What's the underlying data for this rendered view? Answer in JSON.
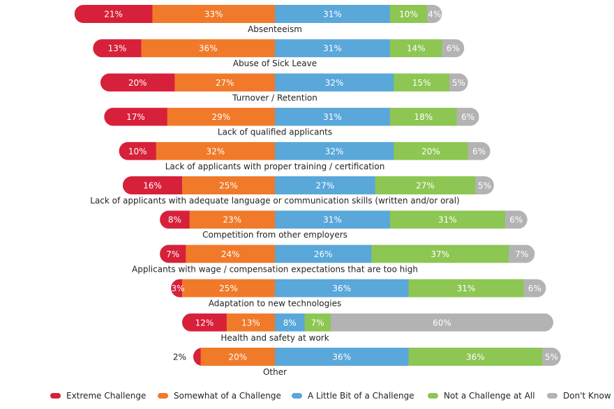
{
  "chart_data": {
    "type": "bar",
    "orientation": "horizontal",
    "stacked": true,
    "diverging": true,
    "title": "",
    "xlabel": "",
    "ylabel": "",
    "xlim": [
      0,
      100
    ],
    "grid": false,
    "legend_position": "bottom",
    "categories": [
      "Absenteeism",
      "Abuse of Sick Leave",
      "Turnover / Retention",
      "Lack of qualified applicants",
      "Lack of applicants with proper training / certification",
      "Lack of applicants with adequate language or communication skills (written and/or oral)",
      "Competition from other employers",
      "Applicants with wage / compensation expectations that are too high",
      "Adaptation to new technologies",
      "Health and safety at work",
      "Other"
    ],
    "series": [
      {
        "name": "Extreme Challenge",
        "color": "#d7213a",
        "values": [
          21,
          13,
          20,
          17,
          10,
          16,
          8,
          7,
          3,
          12,
          2
        ]
      },
      {
        "name": "Somewhat of a Challenge",
        "color": "#f07a2a",
        "values": [
          33,
          36,
          27,
          29,
          32,
          25,
          23,
          24,
          25,
          13,
          20
        ]
      },
      {
        "name": "A Little Bit of a Challenge",
        "color": "#5aa7da",
        "values": [
          31,
          31,
          32,
          31,
          32,
          27,
          31,
          26,
          36,
          8,
          36
        ]
      },
      {
        "name": "Not a Challenge at All",
        "color": "#8dc653",
        "values": [
          10,
          14,
          15,
          18,
          20,
          27,
          31,
          37,
          31,
          7,
          36
        ]
      },
      {
        "name": "Don't Know",
        "color": "#b3b3b3",
        "values": [
          4,
          6,
          5,
          6,
          6,
          5,
          6,
          7,
          6,
          60,
          5
        ]
      }
    ],
    "value_labels": [
      [
        "21%",
        "33%",
        "31%",
        "10%",
        "4%"
      ],
      [
        "13%",
        "36%",
        "31%",
        "14%",
        "6%"
      ],
      [
        "20%",
        "27%",
        "32%",
        "15%",
        "5%"
      ],
      [
        "17%",
        "29%",
        "31%",
        "18%",
        "6%"
      ],
      [
        "10%",
        "32%",
        "32%",
        "20%",
        "6%"
      ],
      [
        "16%",
        "25%",
        "27%",
        "27%",
        "5%"
      ],
      [
        "8%",
        "23%",
        "31%",
        "31%",
        "6%"
      ],
      [
        "7%",
        "24%",
        "26%",
        "37%",
        "7%"
      ],
      [
        "3%",
        "25%",
        "36%",
        "31%",
        "6%"
      ],
      [
        "12%",
        "13%",
        "8%",
        "7%",
        "60%"
      ],
      [
        "2%",
        "20%",
        "36%",
        "36%",
        "5%"
      ]
    ]
  },
  "legend": [
    {
      "label": "Extreme Challenge",
      "color": "#d7213a"
    },
    {
      "label": "Somewhat of a Challenge",
      "color": "#f07a2a"
    },
    {
      "label": "A Little Bit of a Challenge",
      "color": "#5aa7da"
    },
    {
      "label": "Not a Challenge at All",
      "color": "#8dc653"
    },
    {
      "label": "Don't Know",
      "color": "#b3b3b3"
    }
  ]
}
